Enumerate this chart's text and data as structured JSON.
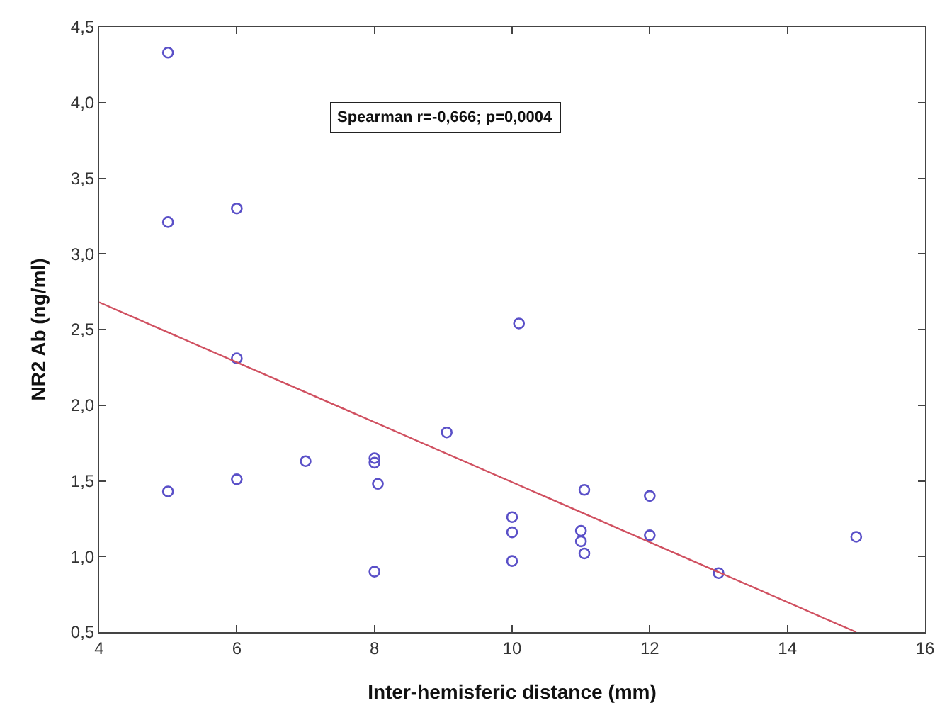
{
  "chart_data": {
    "type": "scatter",
    "xlabel": "Inter-hemisferic distance (mm)",
    "ylabel": "NR2 Ab (ng/ml)",
    "annotations": [
      "Spearman r=-0,666; p=0,0004"
    ],
    "xlim": [
      4,
      16
    ],
    "xticks": [
      4,
      6,
      8,
      10,
      12,
      14,
      16
    ],
    "ylim": [
      0.5,
      4.5
    ],
    "yticks": [
      {
        "value": 0.5,
        "label": "0,5"
      },
      {
        "value": 1,
        "label": "1,0"
      },
      {
        "value": 1.5,
        "label": "1,5"
      },
      {
        "value": 2,
        "label": "2,0"
      },
      {
        "value": 2.5,
        "label": "2,5"
      },
      {
        "value": 3,
        "label": "3,0"
      },
      {
        "value": 3.5,
        "label": "3,5"
      },
      {
        "value": 4,
        "label": "4,0"
      },
      {
        "value": 4.5,
        "label": "4,5"
      }
    ],
    "marker": "circle",
    "series": [
      {
        "color": "#5a50c8",
        "x": [
          5,
          5,
          5,
          6,
          6,
          6,
          7,
          8,
          8,
          8.05,
          8,
          9.05,
          10.1,
          10,
          10,
          10,
          11.05,
          11,
          11,
          11.05,
          12,
          12,
          13,
          15
        ],
        "values": [
          4.33,
          3.21,
          1.43,
          3.3,
          2.31,
          1.51,
          1.63,
          1.65,
          1.62,
          1.48,
          0.9,
          1.82,
          2.54,
          1.26,
          1.16,
          0.97,
          1.44,
          1.17,
          1.1,
          1.02,
          1.4,
          1.14,
          0.89,
          1.13
        ]
      },
      {
        "type": "line",
        "color": "#d05060",
        "line_style": "solid",
        "marker": "none",
        "x": [
          4,
          15
        ],
        "values": [
          2.68,
          0.5
        ]
      }
    ]
  }
}
